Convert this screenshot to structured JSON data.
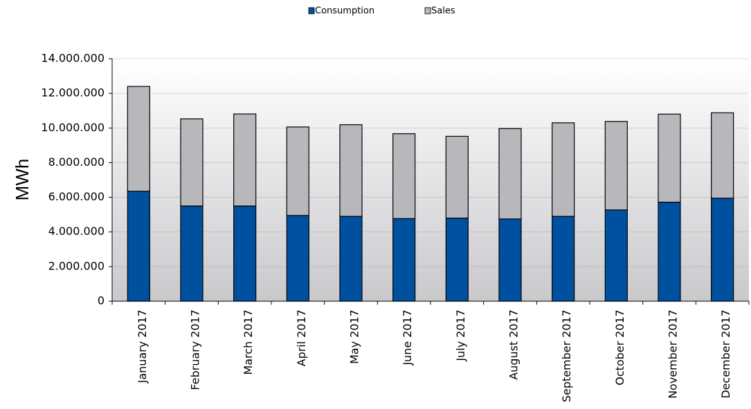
{
  "chart_data": {
    "type": "bar",
    "stacked": true,
    "categories": [
      "January 2017",
      "February 2017",
      "March 2017",
      "April 2017",
      "May 2017",
      "June 2017",
      "July 2017",
      "August 2017",
      "September 2017",
      "October 2017",
      "November 2017",
      "December 2017"
    ],
    "series": [
      {
        "name": "Consumption",
        "color": "#0050a0",
        "values": [
          6350000,
          5500000,
          5500000,
          4950000,
          4900000,
          4770000,
          4800000,
          4750000,
          4900000,
          5270000,
          5720000,
          5950000
        ]
      },
      {
        "name": "Sales",
        "color": "#b8b8bc",
        "values": [
          6050000,
          5030000,
          5310000,
          5110000,
          5290000,
          4900000,
          4720000,
          5220000,
          5400000,
          5110000,
          5080000,
          4930000
        ]
      }
    ],
    "ylabel": "MWh",
    "xlabel": "",
    "ylim": [
      0,
      14000000
    ],
    "yticks": [
      0,
      2000000,
      4000000,
      6000000,
      8000000,
      10000000,
      12000000,
      14000000
    ],
    "ytick_labels": [
      "0",
      "2.000.000",
      "4.000.000",
      "6.000.000",
      "8.000.000",
      "10.000.000",
      "12.000.000",
      "14.000.000"
    ],
    "grid": true,
    "legend_position": "top-center"
  }
}
